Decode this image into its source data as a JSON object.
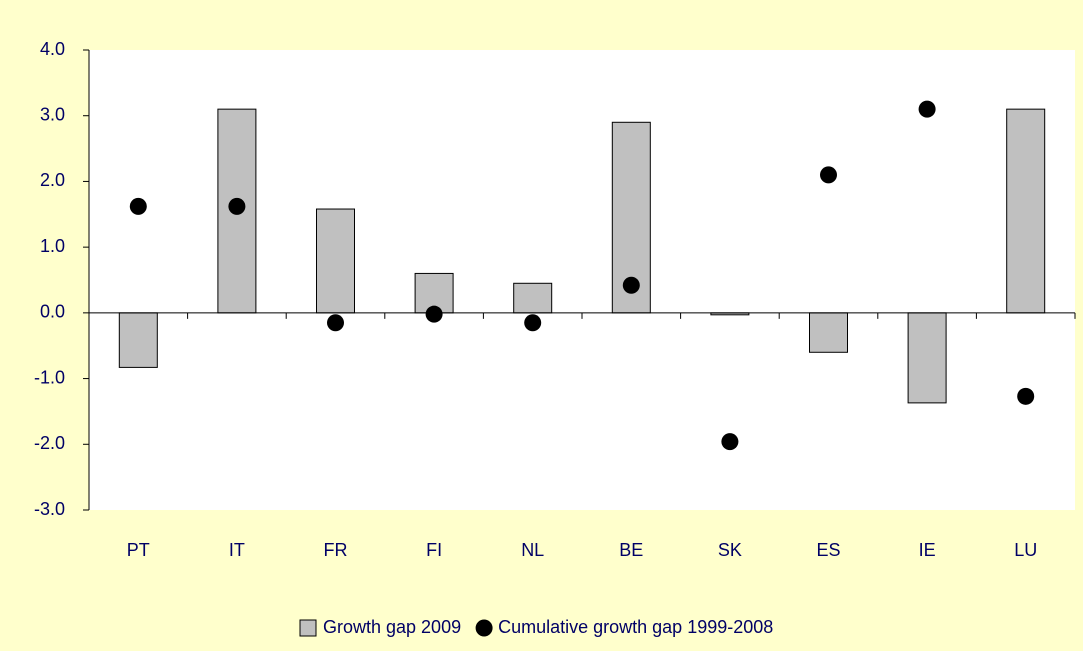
{
  "chart_data": {
    "type": "bar",
    "categories": [
      "PT",
      "IT",
      "FR",
      "FI",
      "NL",
      "BE",
      "SK",
      "ES",
      "IE",
      "LU"
    ],
    "series": [
      {
        "name": "Growth gap 2009",
        "type": "bar",
        "color": "#c0c0c0",
        "values": [
          -0.83,
          3.1,
          1.58,
          0.6,
          0.45,
          2.9,
          -0.03,
          -0.6,
          -1.37,
          3.1
        ]
      },
      {
        "name": "Cumulative growth gap 1999-2008",
        "type": "scatter",
        "color": "#000000",
        "values": [
          1.62,
          1.62,
          -0.15,
          -0.02,
          -0.15,
          0.42,
          -1.96,
          2.1,
          3.1,
          -1.27
        ]
      }
    ],
    "ylim": [
      -3,
      4
    ],
    "yticks": [
      {
        "value": -3,
        "label": "-3.0"
      },
      {
        "value": -2,
        "label": "-2.0"
      },
      {
        "value": -1,
        "label": "-1.0"
      },
      {
        "value": 0,
        "label": "0.0"
      },
      {
        "value": 1,
        "label": "1.0"
      },
      {
        "value": 2,
        "label": "2.0"
      },
      {
        "value": 3,
        "label": "3.0"
      },
      {
        "value": 4,
        "label": "4.0"
      }
    ],
    "legend": "bottom"
  }
}
